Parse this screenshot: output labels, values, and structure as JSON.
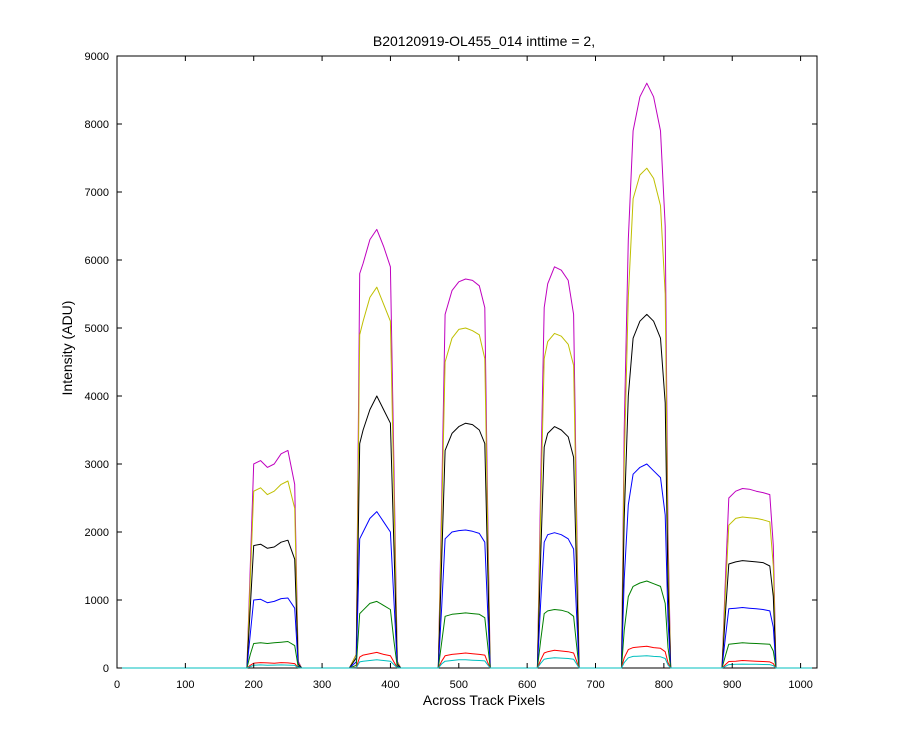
{
  "chart_data": {
    "type": "line",
    "title": "B20120919-OL455_014 inttime = 2,",
    "xlabel": "Across Track Pixels",
    "ylabel": "Intensity (ADU)",
    "xlim": [
      0,
      1024
    ],
    "ylim": [
      0,
      9000
    ],
    "xticks": [
      0,
      100,
      200,
      300,
      400,
      500,
      600,
      700,
      800,
      900,
      1000
    ],
    "yticks": [
      0,
      1000,
      2000,
      3000,
      4000,
      5000,
      6000,
      7000,
      8000,
      9000
    ],
    "grid": false,
    "legend": "none",
    "x": [
      0,
      50,
      100,
      150,
      190,
      195,
      200,
      210,
      220,
      230,
      240,
      250,
      260,
      265,
      270,
      300,
      340,
      350,
      355,
      360,
      370,
      380,
      390,
      400,
      405,
      410,
      415,
      450,
      470,
      475,
      480,
      490,
      500,
      510,
      520,
      530,
      538,
      542,
      546,
      600,
      615,
      620,
      625,
      630,
      640,
      650,
      660,
      668,
      672,
      676,
      720,
      738,
      742,
      748,
      755,
      765,
      775,
      785,
      795,
      802,
      806,
      810,
      870,
      885,
      890,
      895,
      905,
      915,
      925,
      935,
      945,
      955,
      960,
      964,
      968,
      1000,
      1024
    ],
    "series": [
      {
        "color": "#bf00bf",
        "values": [
          0,
          0,
          0,
          0,
          0,
          1500,
          3000,
          3050,
          2950,
          3000,
          3150,
          3200,
          2700,
          100,
          0,
          0,
          0,
          200,
          5800,
          5950,
          6300,
          6450,
          6200,
          5900,
          3000,
          100,
          0,
          0,
          0,
          2500,
          5200,
          5550,
          5680,
          5720,
          5700,
          5620,
          5300,
          2500,
          0,
          0,
          0,
          2800,
          5300,
          5650,
          5900,
          5850,
          5700,
          5200,
          2500,
          0,
          0,
          0,
          3500,
          6300,
          7900,
          8400,
          8600,
          8400,
          7900,
          6500,
          2000,
          0,
          0,
          0,
          1300,
          2500,
          2600,
          2640,
          2630,
          2600,
          2580,
          2550,
          1800,
          0,
          0,
          0,
          0
        ]
      },
      {
        "color": "#bfbf00",
        "values": [
          0,
          0,
          0,
          0,
          0,
          1300,
          2600,
          2650,
          2550,
          2600,
          2700,
          2750,
          2350,
          80,
          0,
          0,
          0,
          200,
          4900,
          5100,
          5450,
          5600,
          5350,
          5100,
          2600,
          90,
          0,
          0,
          0,
          2200,
          4500,
          4850,
          4980,
          5000,
          4960,
          4900,
          4550,
          2200,
          0,
          0,
          0,
          2400,
          4550,
          4800,
          4920,
          4880,
          4760,
          4450,
          2200,
          0,
          0,
          0,
          3000,
          5450,
          6900,
          7250,
          7350,
          7200,
          6800,
          5500,
          1700,
          0,
          0,
          0,
          1100,
          2100,
          2200,
          2220,
          2210,
          2200,
          2180,
          2150,
          1500,
          0,
          0,
          0,
          0
        ]
      },
      {
        "color": "#000000",
        "values": [
          0,
          0,
          0,
          0,
          0,
          900,
          1800,
          1820,
          1760,
          1780,
          1850,
          1880,
          1600,
          60,
          0,
          0,
          0,
          150,
          3300,
          3500,
          3800,
          4000,
          3800,
          3600,
          1800,
          60,
          0,
          0,
          0,
          1600,
          3200,
          3450,
          3550,
          3600,
          3580,
          3500,
          3300,
          1600,
          0,
          0,
          0,
          1700,
          3250,
          3450,
          3550,
          3500,
          3400,
          3100,
          1500,
          0,
          0,
          0,
          2200,
          4000,
          4850,
          5100,
          5200,
          5100,
          4850,
          3900,
          1200,
          0,
          0,
          0,
          800,
          1530,
          1560,
          1580,
          1570,
          1560,
          1550,
          1500,
          1050,
          0,
          0,
          0,
          0
        ]
      },
      {
        "color": "#0000ff",
        "values": [
          0,
          0,
          0,
          0,
          0,
          500,
          1000,
          1010,
          960,
          980,
          1020,
          1030,
          880,
          30,
          0,
          0,
          0,
          90,
          1900,
          2000,
          2200,
          2300,
          2150,
          2000,
          1000,
          30,
          0,
          0,
          0,
          900,
          1900,
          2000,
          2020,
          2030,
          2010,
          1980,
          1850,
          900,
          0,
          0,
          0,
          1000,
          1850,
          1960,
          1990,
          1960,
          1900,
          1750,
          850,
          0,
          0,
          0,
          1300,
          2400,
          2850,
          2950,
          3000,
          2900,
          2800,
          2250,
          700,
          0,
          0,
          0,
          450,
          870,
          880,
          890,
          880,
          870,
          860,
          840,
          600,
          0,
          0,
          0,
          0
        ]
      },
      {
        "color": "#007f00",
        "values": [
          0,
          0,
          0,
          0,
          0,
          200,
          360,
          370,
          360,
          370,
          380,
          390,
          330,
          15,
          0,
          0,
          0,
          40,
          800,
          850,
          950,
          980,
          920,
          860,
          400,
          15,
          0,
          0,
          0,
          380,
          760,
          790,
          800,
          810,
          800,
          790,
          740,
          360,
          0,
          0,
          0,
          420,
          800,
          840,
          860,
          850,
          820,
          760,
          360,
          0,
          0,
          0,
          550,
          1050,
          1200,
          1250,
          1280,
          1240,
          1200,
          950,
          300,
          0,
          0,
          0,
          180,
          350,
          360,
          370,
          365,
          360,
          355,
          350,
          250,
          0,
          0,
          0,
          0
        ]
      },
      {
        "color": "#ff0000",
        "values": [
          0,
          0,
          0,
          0,
          0,
          40,
          70,
          80,
          75,
          70,
          80,
          75,
          65,
          5,
          0,
          0,
          0,
          10,
          160,
          190,
          210,
          230,
          200,
          180,
          90,
          5,
          0,
          0,
          0,
          100,
          180,
          200,
          210,
          220,
          210,
          200,
          190,
          90,
          0,
          0,
          0,
          120,
          220,
          240,
          260,
          250,
          240,
          220,
          110,
          0,
          0,
          0,
          150,
          270,
          300,
          310,
          320,
          300,
          290,
          240,
          80,
          0,
          0,
          0,
          50,
          95,
          100,
          110,
          105,
          100,
          95,
          90,
          65,
          0,
          0,
          0,
          0
        ]
      },
      {
        "color": "#00bfbf",
        "values": [
          0,
          0,
          0,
          0,
          0,
          20,
          40,
          45,
          40,
          42,
          45,
          42,
          38,
          3,
          0,
          0,
          0,
          5,
          90,
          100,
          110,
          120,
          110,
          100,
          50,
          3,
          0,
          0,
          0,
          60,
          100,
          110,
          120,
          120,
          115,
          110,
          105,
          50,
          0,
          0,
          0,
          70,
          130,
          140,
          150,
          145,
          140,
          130,
          65,
          0,
          0,
          0,
          80,
          150,
          170,
          175,
          180,
          170,
          165,
          140,
          45,
          0,
          0,
          0,
          25,
          50,
          55,
          58,
          56,
          55,
          52,
          50,
          35,
          0,
          0,
          0,
          0
        ]
      }
    ]
  }
}
